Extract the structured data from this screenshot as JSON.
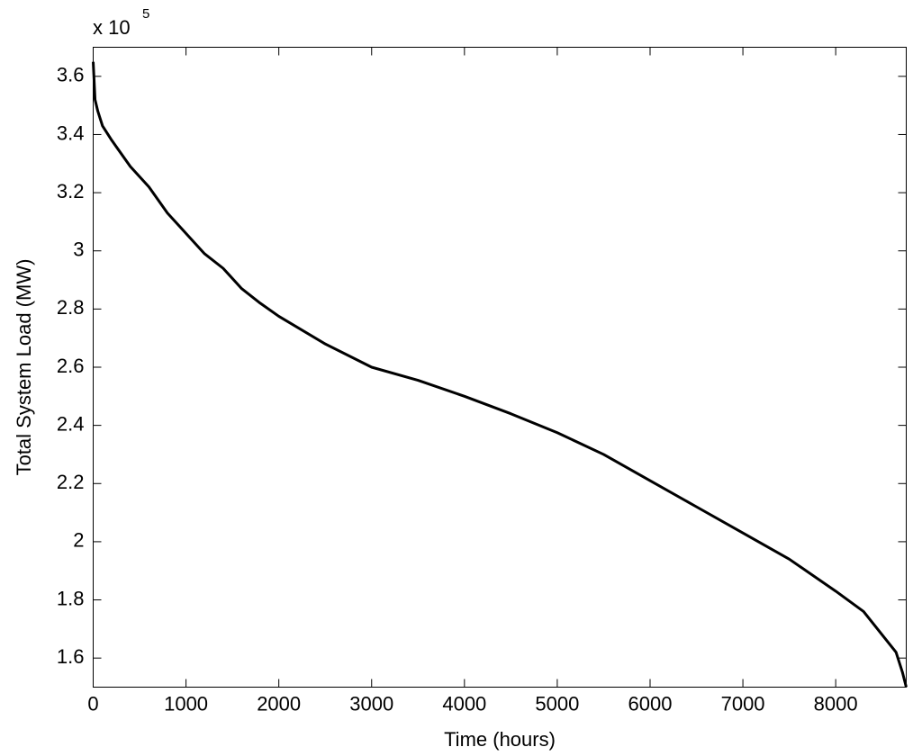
{
  "chart_data": {
    "type": "line",
    "x_label": "Time (hours)",
    "y_label": "Total System Load (MW)",
    "y_multiplier": "x 10",
    "y_multiplier_exponent": "5",
    "x": [
      0,
      20,
      50,
      100,
      200,
      400,
      600,
      800,
      1000,
      1200,
      1400,
      1600,
      1800,
      2000,
      2500,
      3000,
      3500,
      4000,
      4500,
      5000,
      5500,
      6000,
      6500,
      7000,
      7500,
      8000,
      8300,
      8500,
      8650,
      8720,
      8760
    ],
    "series": [
      {
        "color": "#000000",
        "values": [
          3.65,
          3.52,
          3.48,
          3.43,
          3.38,
          3.29,
          3.22,
          3.13,
          3.06,
          2.99,
          2.94,
          2.87,
          2.82,
          2.775,
          2.68,
          2.6,
          2.555,
          2.5,
          2.44,
          2.375,
          2.3,
          2.21,
          2.12,
          2.03,
          1.94,
          1.83,
          1.76,
          1.68,
          1.62,
          1.55,
          1.5
        ]
      }
    ],
    "xlim": [
      0,
      8760
    ],
    "ylim": [
      1.5,
      3.7
    ],
    "xticks": [
      0,
      1000,
      2000,
      3000,
      4000,
      5000,
      6000,
      7000,
      8000
    ],
    "yticks": [
      1.6,
      1.8,
      2,
      2.2,
      2.4,
      2.6,
      2.8,
      3,
      3.2,
      3.4,
      3.6
    ],
    "grid": false
  }
}
